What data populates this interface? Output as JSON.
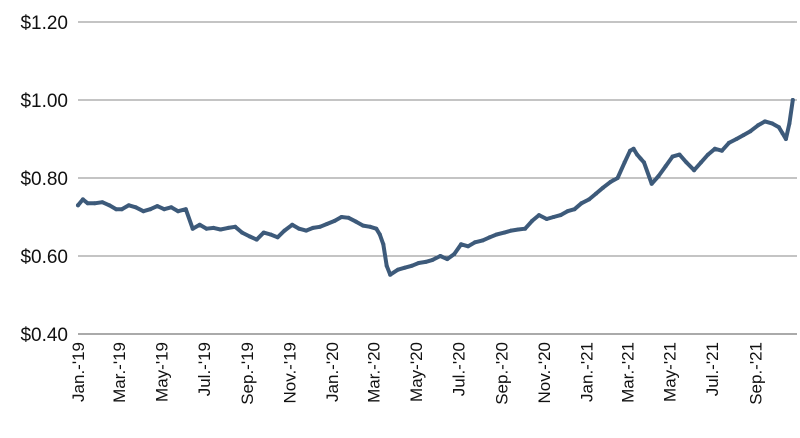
{
  "chart_data": {
    "type": "line",
    "title": "",
    "xlabel": "",
    "ylabel": "",
    "ylim": [
      0.4,
      1.2
    ],
    "yticks": [
      0.4,
      0.6,
      0.8,
      1.0,
      1.2
    ],
    "ytick_labels": [
      "$0.40",
      "$0.60",
      "$0.80",
      "$1.00",
      "$1.20"
    ],
    "xlim": [
      "2019-01-01",
      "2021-10-31"
    ],
    "xticks": [
      "2019-01-01",
      "2019-03-01",
      "2019-05-01",
      "2019-07-01",
      "2019-09-01",
      "2019-11-01",
      "2020-01-01",
      "2020-03-01",
      "2020-05-01",
      "2020-07-01",
      "2020-09-01",
      "2020-11-01",
      "2021-01-01",
      "2021-03-01",
      "2021-05-01",
      "2021-07-01",
      "2021-09-01"
    ],
    "xtick_labels": [
      "Jan.-'19",
      "Mar.-'19",
      "May-'19",
      "Jul.-'19",
      "Sep.-'19",
      "Nov.-'19",
      "Jan.-'20",
      "Mar.-'20",
      "May-'20",
      "Jul.-'20",
      "Sep.-'20",
      "Nov.-'20",
      "Jan.-'21",
      "Mar.-'21",
      "May-'21",
      "Jul.-'21",
      "Sep.-'21"
    ],
    "grid": true,
    "line_color": "#3d5a7a",
    "series": [
      {
        "x": [
          "2019-01-01",
          "2019-01-08",
          "2019-01-15",
          "2019-01-25",
          "2019-02-05",
          "2019-02-15",
          "2019-02-25",
          "2019-03-05",
          "2019-03-15",
          "2019-03-25",
          "2019-04-05",
          "2019-04-15",
          "2019-04-25",
          "2019-05-05",
          "2019-05-15",
          "2019-05-25",
          "2019-06-05",
          "2019-06-15",
          "2019-06-25",
          "2019-07-05",
          "2019-07-15",
          "2019-07-25",
          "2019-08-05",
          "2019-08-15",
          "2019-08-25",
          "2019-09-05",
          "2019-09-15",
          "2019-09-25",
          "2019-10-05",
          "2019-10-15",
          "2019-10-25",
          "2019-11-05",
          "2019-11-15",
          "2019-11-25",
          "2019-12-05",
          "2019-12-15",
          "2019-12-25",
          "2020-01-05",
          "2020-01-15",
          "2020-01-25",
          "2020-02-05",
          "2020-02-15",
          "2020-02-25",
          "2020-03-05",
          "2020-03-10",
          "2020-03-15",
          "2020-03-20",
          "2020-03-25",
          "2020-04-05",
          "2020-04-15",
          "2020-04-25",
          "2020-05-05",
          "2020-05-15",
          "2020-05-25",
          "2020-06-05",
          "2020-06-15",
          "2020-06-25",
          "2020-07-05",
          "2020-07-15",
          "2020-07-25",
          "2020-08-05",
          "2020-08-15",
          "2020-08-25",
          "2020-09-05",
          "2020-09-15",
          "2020-09-25",
          "2020-10-05",
          "2020-10-15",
          "2020-10-25",
          "2020-11-05",
          "2020-11-15",
          "2020-11-25",
          "2020-12-05",
          "2020-12-15",
          "2020-12-25",
          "2021-01-05",
          "2021-01-15",
          "2021-01-25",
          "2021-02-05",
          "2021-02-15",
          "2021-02-25",
          "2021-03-05",
          "2021-03-10",
          "2021-03-15",
          "2021-03-20",
          "2021-03-25",
          "2021-04-05",
          "2021-04-15",
          "2021-04-25",
          "2021-05-05",
          "2021-05-15",
          "2021-05-25",
          "2021-06-05",
          "2021-06-15",
          "2021-06-25",
          "2021-07-05",
          "2021-07-15",
          "2021-07-25",
          "2021-08-05",
          "2021-08-15",
          "2021-08-25",
          "2021-09-05",
          "2021-09-15",
          "2021-09-25",
          "2021-10-05",
          "2021-10-10",
          "2021-10-15",
          "2021-10-20",
          "2021-10-25"
        ],
        "values": [
          0.73,
          0.745,
          0.735,
          0.735,
          0.738,
          0.73,
          0.72,
          0.72,
          0.73,
          0.725,
          0.715,
          0.72,
          0.728,
          0.72,
          0.725,
          0.715,
          0.72,
          0.67,
          0.68,
          0.67,
          0.672,
          0.668,
          0.672,
          0.675,
          0.66,
          0.65,
          0.642,
          0.66,
          0.655,
          0.648,
          0.665,
          0.68,
          0.67,
          0.665,
          0.672,
          0.675,
          0.682,
          0.69,
          0.7,
          0.698,
          0.688,
          0.678,
          0.675,
          0.67,
          0.655,
          0.63,
          0.575,
          0.552,
          0.565,
          0.57,
          0.575,
          0.582,
          0.585,
          0.59,
          0.6,
          0.592,
          0.605,
          0.63,
          0.625,
          0.635,
          0.64,
          0.648,
          0.655,
          0.66,
          0.665,
          0.668,
          0.67,
          0.69,
          0.705,
          0.695,
          0.7,
          0.705,
          0.715,
          0.72,
          0.735,
          0.745,
          0.76,
          0.775,
          0.79,
          0.8,
          0.84,
          0.87,
          0.875,
          0.86,
          0.85,
          0.84,
          0.785,
          0.805,
          0.83,
          0.855,
          0.86,
          0.84,
          0.82,
          0.84,
          0.86,
          0.875,
          0.87,
          0.89,
          0.9,
          0.91,
          0.92,
          0.935,
          0.945,
          0.94,
          0.93,
          0.915,
          0.9,
          0.94,
          1.0
        ]
      }
    ]
  }
}
